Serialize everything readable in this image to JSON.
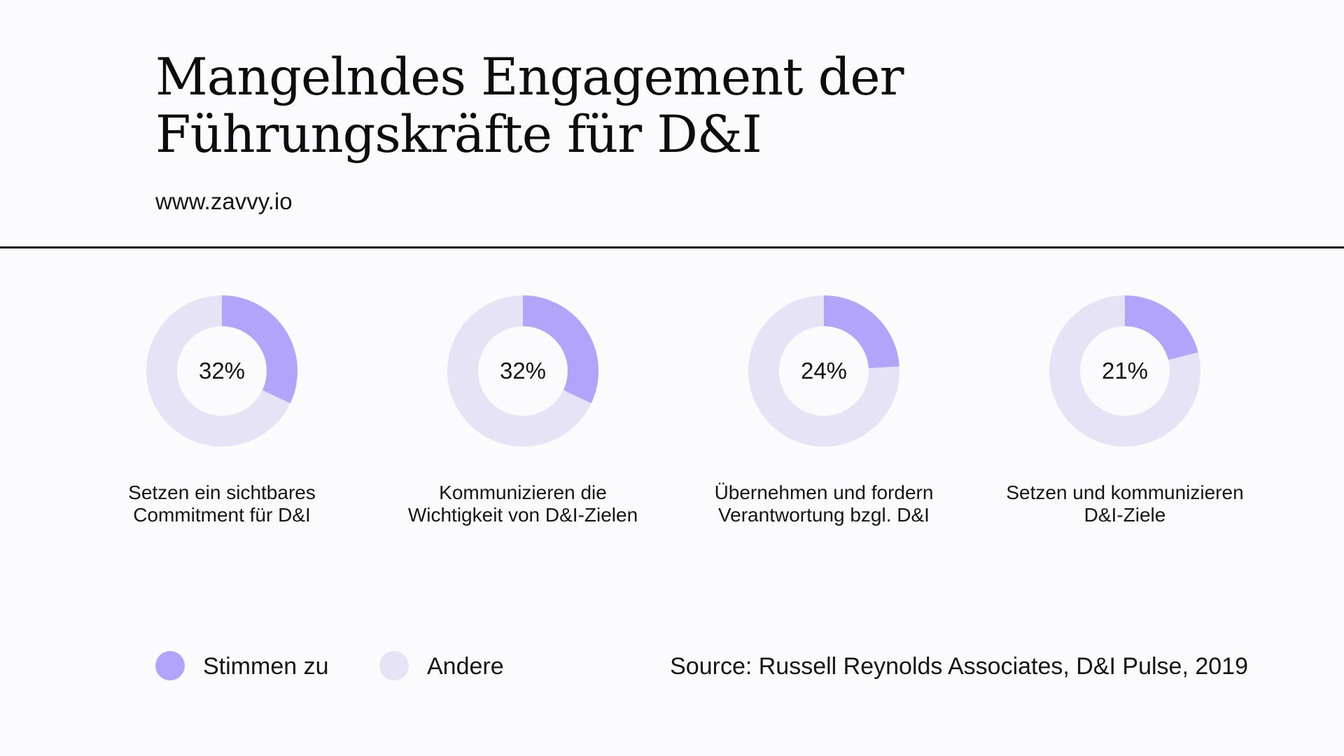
{
  "header": {
    "title": "Mangelndes Engagement der Führungskräfte für D&I",
    "url": "www.zavvy.io"
  },
  "chart_data": {
    "type": "pie",
    "series": [
      {
        "name": "Stimmen zu"
      },
      {
        "name": "Andere"
      }
    ],
    "items": [
      {
        "value": 32,
        "label": "32%",
        "caption_line1": "Setzen ein sichtbares",
        "caption_line2": "Commitment für D&I"
      },
      {
        "value": 32,
        "label": "32%",
        "caption_line1": "Kommunizieren die",
        "caption_line2": "Wichtigkeit von D&I-Zielen"
      },
      {
        "value": 24,
        "label": "24%",
        "caption_line1": "Übernehmen und fordern",
        "caption_line2": "Verantwortung bzgl. D&I"
      },
      {
        "value": 21,
        "label": "21%",
        "caption_line1": "Setzen und kommunizieren",
        "caption_line2": "D&I-Ziele"
      }
    ],
    "colors": {
      "agree": "#b3a4fb",
      "other": "#e6e3f6"
    }
  },
  "legend": {
    "agree_label": "Stimmen zu",
    "other_label": "Andere"
  },
  "source": "Source: Russell Reynolds Associates, D&I Pulse, 2019"
}
